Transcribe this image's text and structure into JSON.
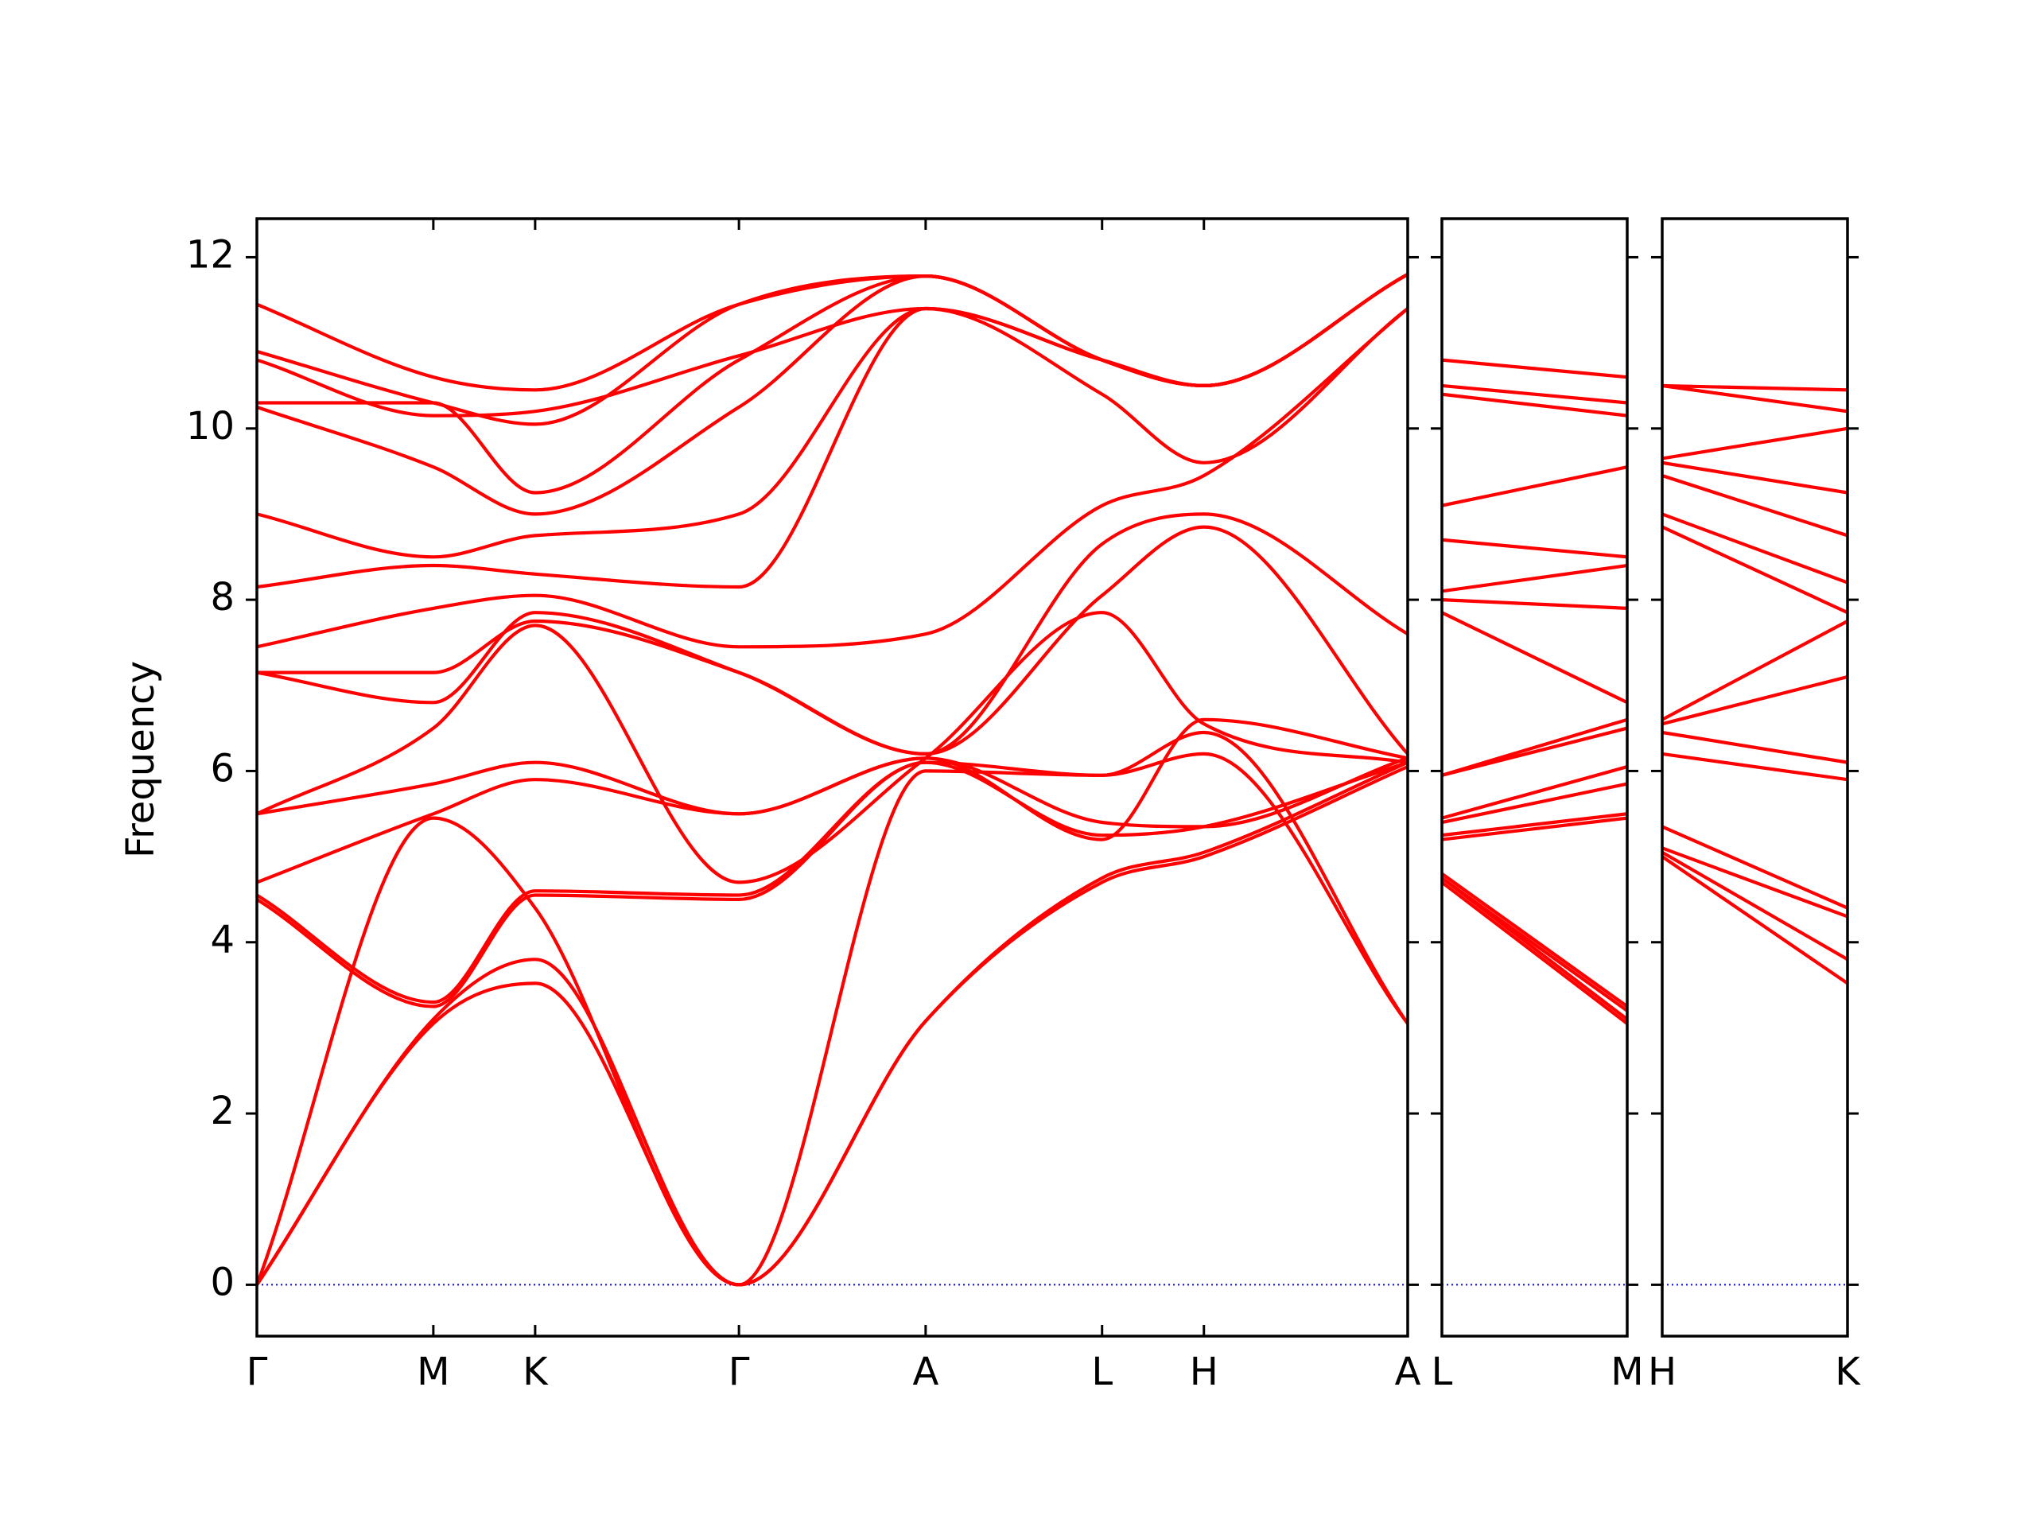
{
  "chart_data": {
    "type": "line",
    "title": "",
    "ylabel": "Frequency",
    "ylim": [
      -0.6,
      12.45
    ],
    "yticks": [
      0,
      2,
      4,
      6,
      8,
      10,
      12
    ],
    "series_color": "#ff0000",
    "zero_line_color": "#0000ff",
    "panels": [
      {
        "name": "main",
        "kpoints": [
          {
            "label": "Γ",
            "x": 0
          },
          {
            "label": "M",
            "x": 1
          },
          {
            "label": "K",
            "x": 1.577
          },
          {
            "label": "Γ",
            "x": 2.732
          },
          {
            "label": "A",
            "x": 3.79
          },
          {
            "label": "L",
            "x": 4.79
          },
          {
            "label": "H",
            "x": 5.367
          },
          {
            "label": "A",
            "x": 6.522
          }
        ],
        "bands": [
          [
            [
              0,
              0
            ],
            [
              1,
              3.05
            ],
            [
              1.577,
              3.52
            ],
            [
              2.732,
              0
            ],
            [
              3.79,
              3.08
            ],
            [
              4.79,
              4.7
            ],
            [
              5.367,
              5.0
            ],
            [
              6.522,
              6.05
            ]
          ],
          [
            [
              0,
              0
            ],
            [
              1,
              3.1
            ],
            [
              1.577,
              3.8
            ],
            [
              2.732,
              0
            ],
            [
              3.79,
              3.08
            ],
            [
              4.79,
              4.75
            ],
            [
              5.367,
              5.05
            ],
            [
              6.522,
              6.1
            ]
          ],
          [
            [
              0,
              0
            ],
            [
              1,
              5.45
            ],
            [
              1.577,
              4.4
            ],
            [
              2.732,
              0
            ],
            [
              3.79,
              6.0
            ],
            [
              4.79,
              5.95
            ],
            [
              5.367,
              6.2
            ],
            [
              6.522,
              3.05
            ]
          ],
          [
            [
              0,
              4.5
            ],
            [
              1,
              3.25
            ],
            [
              1.577,
              4.55
            ],
            [
              2.732,
              4.5
            ],
            [
              3.79,
              6.1
            ],
            [
              4.79,
              5.95
            ],
            [
              5.367,
              6.45
            ],
            [
              6.522,
              3.05
            ]
          ],
          [
            [
              0,
              4.55
            ],
            [
              1,
              3.3
            ],
            [
              1.577,
              4.6
            ],
            [
              2.732,
              4.55
            ],
            [
              3.79,
              6.1
            ],
            [
              4.79,
              5.25
            ],
            [
              5.367,
              5.35
            ],
            [
              6.522,
              6.1
            ]
          ],
          [
            [
              0,
              4.7
            ],
            [
              1,
              5.5
            ],
            [
              1.577,
              5.9
            ],
            [
              2.732,
              5.5
            ],
            [
              3.79,
              6.15
            ],
            [
              4.79,
              5.4
            ],
            [
              5.367,
              5.35
            ],
            [
              6.522,
              6.15
            ]
          ],
          [
            [
              0,
              5.5
            ],
            [
              1,
              5.85
            ],
            [
              1.577,
              6.1
            ],
            [
              2.732,
              5.5
            ],
            [
              3.79,
              6.15
            ],
            [
              4.79,
              5.2
            ],
            [
              5.367,
              6.6
            ],
            [
              6.522,
              6.15
            ]
          ],
          [
            [
              0,
              5.5
            ],
            [
              1,
              6.5
            ],
            [
              1.577,
              7.7
            ],
            [
              2.732,
              4.7
            ],
            [
              3.79,
              6.15
            ],
            [
              4.79,
              7.85
            ],
            [
              5.367,
              6.55
            ],
            [
              6.522,
              6.1
            ]
          ],
          [
            [
              0,
              7.15
            ],
            [
              1,
              6.8
            ],
            [
              1.577,
              7.85
            ],
            [
              2.732,
              7.15
            ],
            [
              3.79,
              6.2
            ],
            [
              4.79,
              8.05
            ],
            [
              5.367,
              8.85
            ],
            [
              6.522,
              6.2
            ]
          ],
          [
            [
              0,
              7.15
            ],
            [
              1,
              7.15
            ],
            [
              1.577,
              7.75
            ],
            [
              2.732,
              7.15
            ],
            [
              3.79,
              6.2
            ],
            [
              4.79,
              8.65
            ],
            [
              5.367,
              9.0
            ],
            [
              6.522,
              7.6
            ]
          ],
          [
            [
              0,
              7.45
            ],
            [
              1,
              7.9
            ],
            [
              1.577,
              8.05
            ],
            [
              2.732,
              7.45
            ],
            [
              3.79,
              7.6
            ],
            [
              4.79,
              9.1
            ],
            [
              5.367,
              9.45
            ],
            [
              6.522,
              11.4
            ]
          ],
          [
            [
              0,
              8.15
            ],
            [
              1,
              8.4
            ],
            [
              1.577,
              8.3
            ],
            [
              2.732,
              8.15
            ],
            [
              3.79,
              11.4
            ],
            [
              4.79,
              10.4
            ],
            [
              5.367,
              9.6
            ],
            [
              6.522,
              11.4
            ]
          ],
          [
            [
              0,
              9.0
            ],
            [
              1,
              8.5
            ],
            [
              1.577,
              8.75
            ],
            [
              2.732,
              9.0
            ],
            [
              3.79,
              11.4
            ],
            [
              4.79,
              10.8
            ],
            [
              5.367,
              10.5
            ],
            [
              6.522,
              11.8
            ]
          ],
          [
            [
              0,
              10.25
            ],
            [
              1,
              9.55
            ],
            [
              1.577,
              9.0
            ],
            [
              2.732,
              10.25
            ],
            [
              3.79,
              11.78
            ],
            [
              4.79,
              10.8
            ],
            [
              5.367,
              10.5
            ],
            [
              6.522,
              11.8
            ]
          ],
          [
            [
              0,
              10.3
            ],
            [
              1,
              10.3
            ],
            [
              1.577,
              9.25
            ],
            [
              2.732,
              10.8
            ],
            [
              3.79,
              11.78
            ],
            [
              4.79,
              10.8
            ],
            [
              5.367,
              10.5
            ],
            [
              6.522,
              11.8
            ]
          ],
          [
            [
              0,
              10.8
            ],
            [
              1,
              10.15
            ],
            [
              1.577,
              10.2
            ],
            [
              2.732,
              10.85
            ],
            [
              3.79,
              11.4
            ],
            [
              4.79,
              10.8
            ],
            [
              5.367,
              10.5
            ],
            [
              6.522,
              11.8
            ]
          ],
          [
            [
              0,
              10.9
            ],
            [
              1,
              10.3
            ],
            [
              1.577,
              10.05
            ],
            [
              2.732,
              11.45
            ],
            [
              3.79,
              11.78
            ],
            [
              4.79,
              10.8
            ],
            [
              5.367,
              10.5
            ],
            [
              6.522,
              11.8
            ]
          ],
          [
            [
              0,
              11.45
            ],
            [
              1,
              10.6
            ],
            [
              1.577,
              10.45
            ],
            [
              2.732,
              11.45
            ],
            [
              3.79,
              11.78
            ],
            [
              4.79,
              10.8
            ],
            [
              5.367,
              10.5
            ],
            [
              6.522,
              11.8
            ]
          ]
        ]
      },
      {
        "name": "L-M",
        "kpoints": [
          {
            "label": "L",
            "x": 0
          },
          {
            "label": "M",
            "x": 1
          }
        ],
        "bands": [
          [
            [
              0,
              4.7
            ],
            [
              1,
              3.05
            ]
          ],
          [
            [
              0,
              4.75
            ],
            [
              1,
              3.1
            ]
          ],
          [
            [
              0,
              4.75
            ],
            [
              1,
              3.2
            ]
          ],
          [
            [
              0,
              4.8
            ],
            [
              1,
              3.25
            ]
          ],
          [
            [
              0,
              5.2
            ],
            [
              1,
              5.45
            ]
          ],
          [
            [
              0,
              5.25
            ],
            [
              1,
              5.5
            ]
          ],
          [
            [
              0,
              5.4
            ],
            [
              1,
              5.85
            ]
          ],
          [
            [
              0,
              5.45
            ],
            [
              1,
              6.05
            ]
          ],
          [
            [
              0,
              5.95
            ],
            [
              1,
              6.5
            ]
          ],
          [
            [
              0,
              5.95
            ],
            [
              1,
              6.6
            ]
          ],
          [
            [
              0,
              7.85
            ],
            [
              1,
              6.8
            ]
          ],
          [
            [
              0,
              8.0
            ],
            [
              1,
              7.9
            ]
          ],
          [
            [
              0,
              8.1
            ],
            [
              1,
              8.4
            ]
          ],
          [
            [
              0,
              8.7
            ],
            [
              1,
              8.5
            ]
          ],
          [
            [
              0,
              9.1
            ],
            [
              1,
              9.55
            ]
          ],
          [
            [
              0,
              10.4
            ],
            [
              1,
              10.15
            ]
          ],
          [
            [
              0,
              10.5
            ],
            [
              1,
              10.3
            ]
          ],
          [
            [
              0,
              10.8
            ],
            [
              1,
              10.6
            ]
          ]
        ]
      },
      {
        "name": "H-K",
        "kpoints": [
          {
            "label": "H",
            "x": 0
          },
          {
            "label": "K",
            "x": 1
          }
        ],
        "bands": [
          [
            [
              0,
              5.0
            ],
            [
              1,
              3.52
            ]
          ],
          [
            [
              0,
              5.05
            ],
            [
              1,
              3.8
            ]
          ],
          [
            [
              0,
              5.1
            ],
            [
              1,
              4.3
            ]
          ],
          [
            [
              0,
              5.35
            ],
            [
              1,
              4.4
            ]
          ],
          [
            [
              0,
              6.2
            ],
            [
              1,
              5.9
            ]
          ],
          [
            [
              0,
              6.45
            ],
            [
              1,
              6.1
            ]
          ],
          [
            [
              0,
              6.55
            ],
            [
              1,
              7.1
            ]
          ],
          [
            [
              0,
              6.6
            ],
            [
              1,
              7.75
            ]
          ],
          [
            [
              0,
              8.85
            ],
            [
              1,
              7.85
            ]
          ],
          [
            [
              0,
              9.0
            ],
            [
              1,
              8.2
            ]
          ],
          [
            [
              0,
              9.45
            ],
            [
              1,
              8.75
            ]
          ],
          [
            [
              0,
              9.6
            ],
            [
              1,
              9.25
            ]
          ],
          [
            [
              0,
              9.65
            ],
            [
              1,
              10.0
            ]
          ],
          [
            [
              0,
              10.5
            ],
            [
              1,
              10.2
            ]
          ],
          [
            [
              0,
              10.5
            ],
            [
              1,
              10.45
            ]
          ]
        ]
      }
    ]
  }
}
